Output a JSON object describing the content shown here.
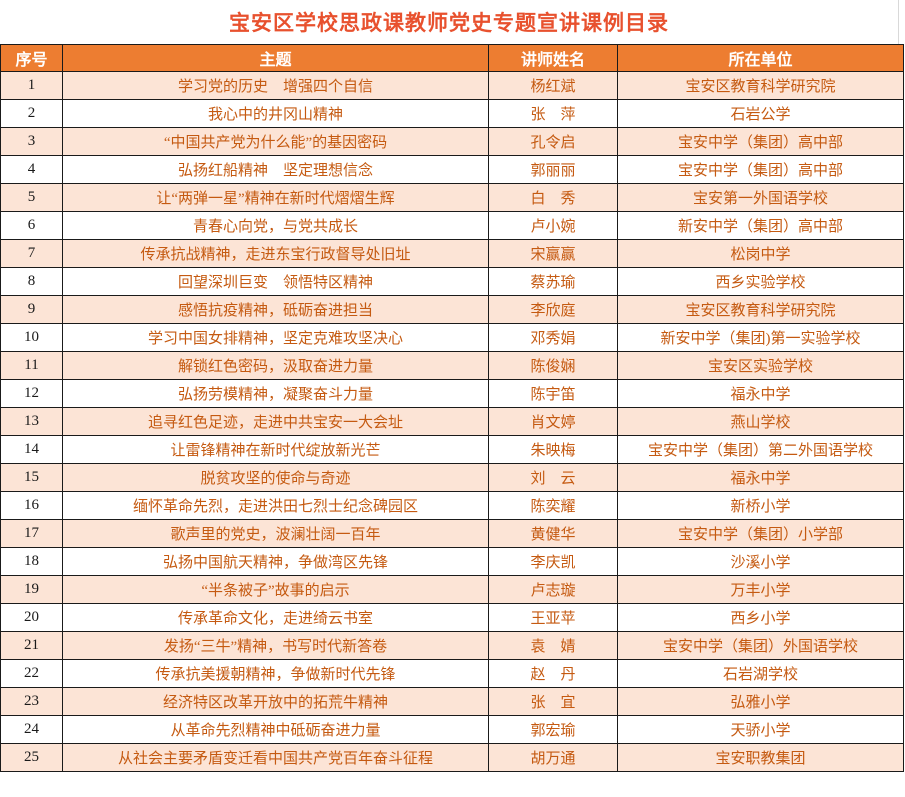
{
  "title": "宝安区学校思政课教师党史专题宣讲课例目录",
  "colors": {
    "title_color": "#E8512E",
    "header_bg": "#ED7D31",
    "header_text": "#FFFFFF",
    "row_alt_bg": "#FCE4D6",
    "data_text": "#C55A11",
    "index_text": "#1A1A1A",
    "border_color": "#1A1A1A"
  },
  "table": {
    "headers": [
      "序号",
      "主题",
      "讲师姓名",
      "所在单位"
    ],
    "rows": [
      {
        "no": "1",
        "topic": "学习党的历史　增强四个自信",
        "lecturer": "杨红斌",
        "unit": "宝安区教育科学研究院"
      },
      {
        "no": "2",
        "topic": "我心中的井冈山精神",
        "lecturer": "张　萍",
        "unit": "石岩公学"
      },
      {
        "no": "3",
        "topic": "“中国共产党为什么能”的基因密码",
        "lecturer": "孔令启",
        "unit": "宝安中学（集团）高中部"
      },
      {
        "no": "4",
        "topic": "弘扬红船精神　坚定理想信念",
        "lecturer": "郭丽丽",
        "unit": "宝安中学（集团）高中部"
      },
      {
        "no": "5",
        "topic": "让“两弹一星”精神在新时代熠熠生辉",
        "lecturer": "白　秀",
        "unit": "宝安第一外国语学校"
      },
      {
        "no": "6",
        "topic": "青春心向党，与党共成长",
        "lecturer": "卢小婉",
        "unit": "新安中学（集团）高中部"
      },
      {
        "no": "7",
        "topic": "传承抗战精神，走进东宝行政督导处旧址",
        "lecturer": "宋赢赢",
        "unit": "松岗中学"
      },
      {
        "no": "8",
        "topic": "回望深圳巨变　领悟特区精神",
        "lecturer": "蔡苏瑜",
        "unit": "西乡实验学校"
      },
      {
        "no": "9",
        "topic": "感悟抗疫精神，砥砺奋进担当",
        "lecturer": "李欣庭",
        "unit": "宝安区教育科学研究院"
      },
      {
        "no": "10",
        "topic": "学习中国女排精神，坚定克难攻坚决心",
        "lecturer": "邓秀娟",
        "unit": "新安中学（集团)第一实验学校"
      },
      {
        "no": "11",
        "topic": "解锁红色密码，汲取奋进力量",
        "lecturer": "陈俊娴",
        "unit": "宝安区实验学校"
      },
      {
        "no": "12",
        "topic": "弘扬劳模精神，凝聚奋斗力量",
        "lecturer": "陈宇笛",
        "unit": "福永中学"
      },
      {
        "no": "13",
        "topic": "追寻红色足迹，走进中共宝安一大会址",
        "lecturer": "肖文婷",
        "unit": "燕山学校"
      },
      {
        "no": "14",
        "topic": "让雷锋精神在新时代绽放新光芒",
        "lecturer": "朱映梅",
        "unit": "宝安中学（集团）第二外国语学校"
      },
      {
        "no": "15",
        "topic": "脱贫攻坚的使命与奇迹",
        "lecturer": "刘　云",
        "unit": "福永中学"
      },
      {
        "no": "16",
        "topic": "缅怀革命先烈，走进洪田七烈士纪念碑园区",
        "lecturer": "陈奕耀",
        "unit": "新桥小学"
      },
      {
        "no": "17",
        "topic": "歌声里的党史，波澜壮阔一百年",
        "lecturer": "黄健华",
        "unit": "宝安中学（集团）小学部"
      },
      {
        "no": "18",
        "topic": "弘扬中国航天精神，争做湾区先锋",
        "lecturer": "李庆凯",
        "unit": "沙溪小学"
      },
      {
        "no": "19",
        "topic": "“半条被子”故事的启示",
        "lecturer": "卢志璇",
        "unit": "万丰小学"
      },
      {
        "no": "20",
        "topic": "传承革命文化，走进绮云书室",
        "lecturer": "王亚苹",
        "unit": "西乡小学"
      },
      {
        "no": "21",
        "topic": "发扬“三牛”精神，书写时代新答卷",
        "lecturer": "袁　婧",
        "unit": "宝安中学（集团）外国语学校"
      },
      {
        "no": "22",
        "topic": "传承抗美援朝精神，争做新时代先锋",
        "lecturer": "赵　丹",
        "unit": "石岩湖学校"
      },
      {
        "no": "23",
        "topic": "经济特区改革开放中的拓荒牛精神",
        "lecturer": "张　宜",
        "unit": "弘雅小学"
      },
      {
        "no": "24",
        "topic": "从革命先烈精神中砥砺奋进力量",
        "lecturer": "郭宏瑜",
        "unit": "天骄小学"
      },
      {
        "no": "25",
        "topic": "从社会主要矛盾变迁看中国共产党百年奋斗征程",
        "lecturer": "胡万通",
        "unit": "宝安职教集团"
      }
    ]
  }
}
